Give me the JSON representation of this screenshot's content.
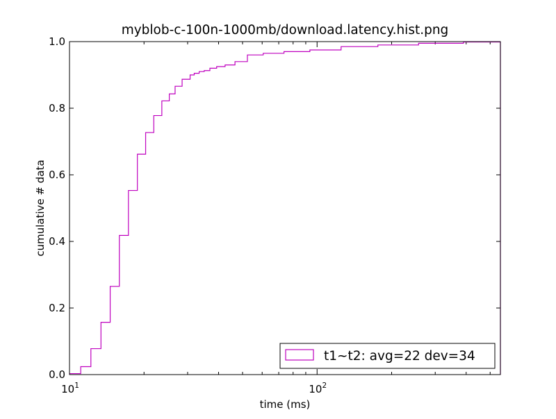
{
  "chart_data": {
    "type": "line",
    "title": "myblob-c-100n-1000mb/download.latency.hist.png",
    "xlabel": "time (ms)",
    "ylabel": "cumulative # data",
    "x_scale": "log",
    "xlim": [
      10,
      550
    ],
    "ylim": [
      0,
      1.0
    ],
    "x_ticks": [
      {
        "value": 10,
        "base": "10",
        "exp": "1"
      },
      {
        "value": 100,
        "base": "10",
        "exp": "2"
      }
    ],
    "y_ticks": [
      "0.0",
      "0.2",
      "0.4",
      "0.6",
      "0.8",
      "1.0"
    ],
    "grid": false,
    "legend": {
      "position": "lower-right",
      "entries": [
        "t1~t2: avg=22 dev=34"
      ]
    },
    "colors": {
      "series": "#bf00bf"
    },
    "series": [
      {
        "name": "t1~t2: avg=22 dev=34",
        "style": "step",
        "x": [
          10,
          11.1,
          12.2,
          13.4,
          14.6,
          15.9,
          17.3,
          18.8,
          20.3,
          21.9,
          23.6,
          25.3,
          26.7,
          28.5,
          30.7,
          31.9,
          33.4,
          35,
          36.9,
          39.3,
          42.5,
          46.6,
          52.3,
          60.6,
          73.5,
          93.5,
          125,
          176,
          257,
          390,
          550
        ],
        "y": [
          0.003,
          0.024,
          0.078,
          0.157,
          0.265,
          0.418,
          0.553,
          0.662,
          0.727,
          0.778,
          0.822,
          0.843,
          0.866,
          0.887,
          0.9,
          0.905,
          0.91,
          0.913,
          0.92,
          0.925,
          0.93,
          0.94,
          0.96,
          0.965,
          0.97,
          0.975,
          0.985,
          0.99,
          0.995,
          0.999,
          1.0
        ]
      }
    ]
  }
}
